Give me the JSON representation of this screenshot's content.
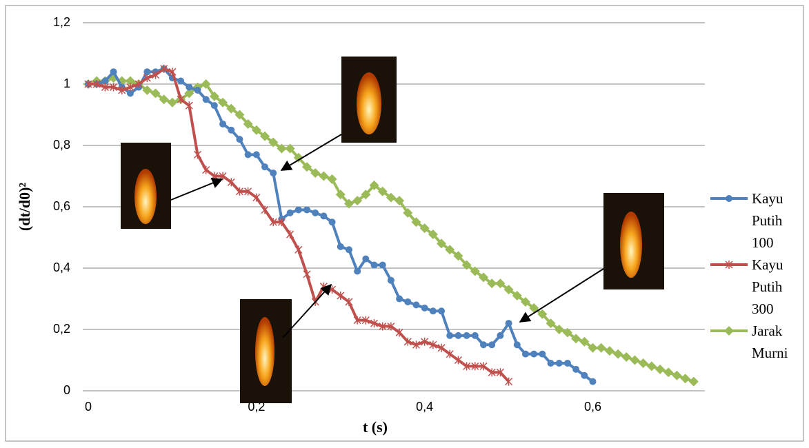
{
  "chart_data": {
    "type": "line",
    "x_label": "t (s)",
    "y_label": "(dt/d0)²",
    "x": [
      0,
      0.01,
      0.02,
      0.03,
      0.04,
      0.05,
      0.06,
      0.07,
      0.08,
      0.09,
      0.1,
      0.11,
      0.12,
      0.13,
      0.14,
      0.15,
      0.16,
      0.17,
      0.18,
      0.19,
      0.2,
      0.21,
      0.22,
      0.23,
      0.24,
      0.25,
      0.26,
      0.27,
      0.28,
      0.29,
      0.3,
      0.31,
      0.32,
      0.33,
      0.34,
      0.35,
      0.36,
      0.37,
      0.38,
      0.39,
      0.4,
      0.41,
      0.42,
      0.43,
      0.44,
      0.45,
      0.46,
      0.47,
      0.48,
      0.49,
      0.5,
      0.51,
      0.52,
      0.53,
      0.54,
      0.55,
      0.56,
      0.57,
      0.58,
      0.59,
      0.6,
      0.61,
      0.62,
      0.63,
      0.64,
      0.65,
      0.66,
      0.67,
      0.68,
      0.69,
      0.7,
      0.71,
      0.72
    ],
    "xlim": [
      0,
      0.73
    ],
    "xticks": [
      0,
      {
        "value": 0.2,
        "label": "0,2"
      },
      {
        "value": 0.4,
        "label": "0,4"
      },
      {
        "value": 0.6,
        "label": "0,6"
      }
    ],
    "ylim": [
      0,
      1.2
    ],
    "yticks": [
      0,
      {
        "value": 0.2,
        "label": "0,2"
      },
      {
        "value": 0.4,
        "label": "0,4"
      },
      {
        "value": 0.6,
        "label": "0,6"
      },
      {
        "value": 0.8,
        "label": "0,8"
      },
      1,
      {
        "value": 1.2,
        "label": "1,2"
      }
    ],
    "grid": true,
    "legend": "right",
    "series": [
      {
        "name": "Kayu Putih 100",
        "color": "#4f81bd",
        "marker": "circle",
        "values": [
          1.0,
          1.0,
          1.01,
          1.04,
          0.99,
          0.97,
          0.99,
          1.04,
          1.04,
          1.05,
          1.02,
          1.01,
          0.99,
          0.98,
          0.95,
          0.93,
          0.87,
          0.85,
          0.82,
          0.77,
          0.77,
          0.73,
          0.71,
          0.56,
          0.58,
          0.59,
          0.59,
          0.58,
          0.57,
          0.55,
          0.47,
          0.46,
          0.39,
          0.43,
          0.41,
          0.41,
          0.36,
          0.3,
          0.29,
          0.28,
          0.27,
          0.26,
          0.26,
          0.18,
          0.18,
          0.18,
          0.18,
          0.15,
          0.15,
          0.18,
          0.22,
          0.15,
          0.12,
          0.12,
          0.12,
          0.09,
          0.09,
          0.09,
          0.07,
          0.05,
          0.03,
          null,
          null,
          null,
          null,
          null,
          null,
          null,
          null,
          null,
          null,
          null,
          null
        ]
      },
      {
        "name": "Kayu Putih 300",
        "color": "#c0504d",
        "marker": "star",
        "values": [
          1.0,
          1.0,
          0.99,
          0.99,
          0.98,
          0.99,
          1.0,
          1.02,
          1.03,
          1.05,
          1.04,
          0.95,
          0.93,
          0.77,
          0.72,
          0.7,
          0.7,
          0.68,
          0.65,
          0.65,
          0.63,
          0.59,
          0.55,
          0.55,
          0.51,
          0.46,
          0.38,
          0.29,
          0.34,
          0.33,
          0.31,
          0.29,
          0.23,
          0.23,
          0.22,
          0.21,
          0.21,
          0.19,
          0.16,
          0.15,
          0.16,
          0.15,
          0.14,
          0.12,
          0.1,
          0.08,
          0.08,
          0.08,
          0.06,
          0.06,
          0.03,
          null,
          null,
          null,
          null,
          null,
          null,
          null,
          null,
          null,
          null,
          null,
          null,
          null,
          null,
          null,
          null,
          null,
          null,
          null,
          null,
          null,
          null
        ]
      },
      {
        "name": "Jarak Murni",
        "color": "#9bbb59",
        "marker": "diamond",
        "values": [
          1.0,
          1.01,
          1.01,
          1.02,
          1.01,
          1.01,
          1.0,
          0.98,
          0.97,
          0.95,
          0.94,
          0.95,
          0.97,
          0.99,
          1.0,
          0.96,
          0.94,
          0.92,
          0.9,
          0.87,
          0.85,
          0.83,
          0.81,
          0.79,
          0.79,
          0.76,
          0.73,
          0.71,
          0.7,
          0.69,
          0.64,
          0.61,
          0.62,
          0.64,
          0.67,
          0.65,
          0.63,
          0.62,
          0.58,
          0.55,
          0.53,
          0.51,
          0.48,
          0.46,
          0.44,
          0.41,
          0.39,
          0.37,
          0.35,
          0.35,
          0.33,
          0.31,
          0.29,
          0.27,
          0.25,
          0.22,
          0.2,
          0.19,
          0.17,
          0.16,
          0.14,
          0.14,
          0.13,
          0.12,
          0.11,
          0.1,
          0.09,
          0.08,
          0.07,
          0.06,
          0.05,
          0.04,
          0.03
        ]
      }
    ]
  }
}
